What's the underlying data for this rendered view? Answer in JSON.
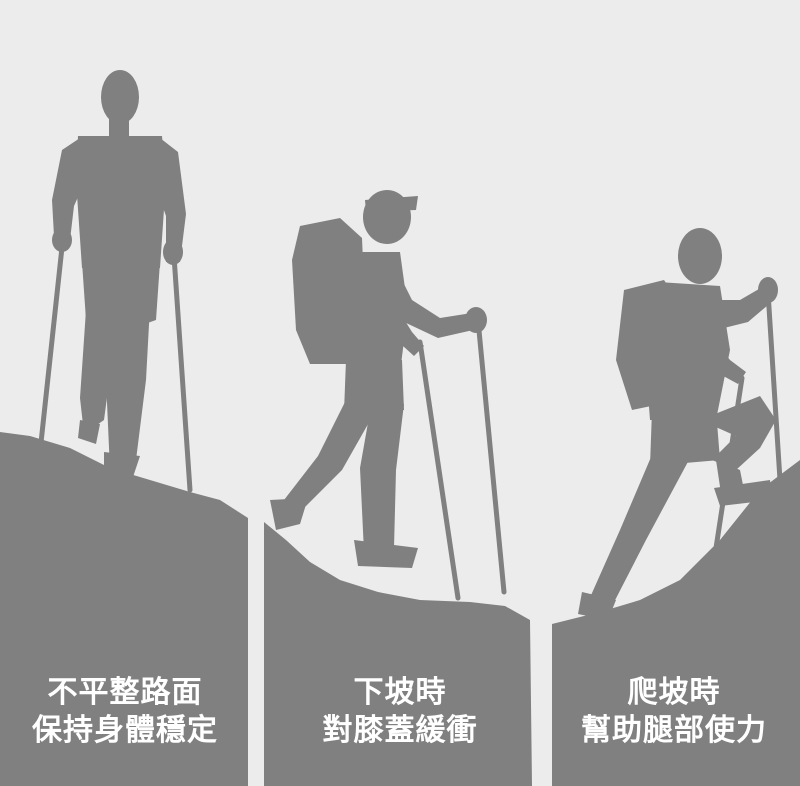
{
  "colors": {
    "background": "#ececec",
    "silhouette": "#808080",
    "text": "#ffffff"
  },
  "panels": [
    {
      "scene": "walking-uneven-ground",
      "caption_line_1": "不平整路面",
      "caption_line_2": "保持身體穩定"
    },
    {
      "scene": "walking-downhill",
      "caption_line_1": "下坡時",
      "caption_line_2": "對膝蓋緩衝"
    },
    {
      "scene": "climbing-uphill",
      "caption_line_1": "爬坡時",
      "caption_line_2": "幫助腿部使力"
    }
  ]
}
